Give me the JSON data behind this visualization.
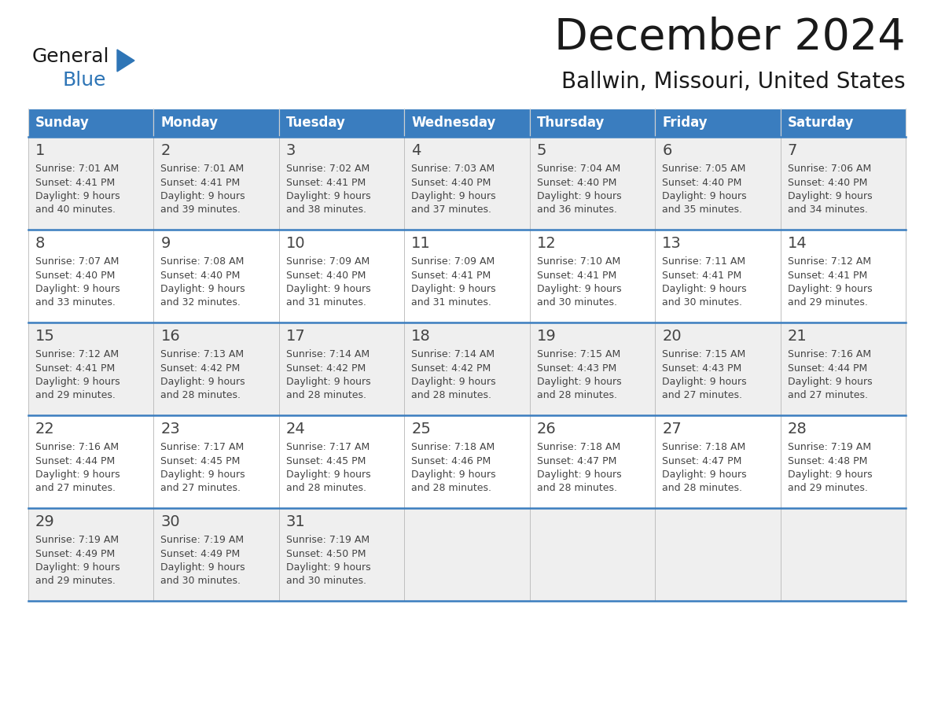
{
  "title": "December 2024",
  "subtitle": "Ballwin, Missouri, United States",
  "header_color": "#3A7DBF",
  "header_text_color": "#FFFFFF",
  "row_bg_even": "#EFEFEF",
  "row_bg_odd": "#FFFFFF",
  "day_headers": [
    "Sunday",
    "Monday",
    "Tuesday",
    "Wednesday",
    "Thursday",
    "Friday",
    "Saturday"
  ],
  "days": [
    {
      "date": 1,
      "col": 0,
      "row": 0,
      "sunrise": "7:01 AM",
      "sunset": "4:41 PM",
      "daylight_line1": "9 hours",
      "daylight_line2": "and 40 minutes."
    },
    {
      "date": 2,
      "col": 1,
      "row": 0,
      "sunrise": "7:01 AM",
      "sunset": "4:41 PM",
      "daylight_line1": "9 hours",
      "daylight_line2": "and 39 minutes."
    },
    {
      "date": 3,
      "col": 2,
      "row": 0,
      "sunrise": "7:02 AM",
      "sunset": "4:41 PM",
      "daylight_line1": "9 hours",
      "daylight_line2": "and 38 minutes."
    },
    {
      "date": 4,
      "col": 3,
      "row": 0,
      "sunrise": "7:03 AM",
      "sunset": "4:40 PM",
      "daylight_line1": "9 hours",
      "daylight_line2": "and 37 minutes."
    },
    {
      "date": 5,
      "col": 4,
      "row": 0,
      "sunrise": "7:04 AM",
      "sunset": "4:40 PM",
      "daylight_line1": "9 hours",
      "daylight_line2": "and 36 minutes."
    },
    {
      "date": 6,
      "col": 5,
      "row": 0,
      "sunrise": "7:05 AM",
      "sunset": "4:40 PM",
      "daylight_line1": "9 hours",
      "daylight_line2": "and 35 minutes."
    },
    {
      "date": 7,
      "col": 6,
      "row": 0,
      "sunrise": "7:06 AM",
      "sunset": "4:40 PM",
      "daylight_line1": "9 hours",
      "daylight_line2": "and 34 minutes."
    },
    {
      "date": 8,
      "col": 0,
      "row": 1,
      "sunrise": "7:07 AM",
      "sunset": "4:40 PM",
      "daylight_line1": "9 hours",
      "daylight_line2": "and 33 minutes."
    },
    {
      "date": 9,
      "col": 1,
      "row": 1,
      "sunrise": "7:08 AM",
      "sunset": "4:40 PM",
      "daylight_line1": "9 hours",
      "daylight_line2": "and 32 minutes."
    },
    {
      "date": 10,
      "col": 2,
      "row": 1,
      "sunrise": "7:09 AM",
      "sunset": "4:40 PM",
      "daylight_line1": "9 hours",
      "daylight_line2": "and 31 minutes."
    },
    {
      "date": 11,
      "col": 3,
      "row": 1,
      "sunrise": "7:09 AM",
      "sunset": "4:41 PM",
      "daylight_line1": "9 hours",
      "daylight_line2": "and 31 minutes."
    },
    {
      "date": 12,
      "col": 4,
      "row": 1,
      "sunrise": "7:10 AM",
      "sunset": "4:41 PM",
      "daylight_line1": "9 hours",
      "daylight_line2": "and 30 minutes."
    },
    {
      "date": 13,
      "col": 5,
      "row": 1,
      "sunrise": "7:11 AM",
      "sunset": "4:41 PM",
      "daylight_line1": "9 hours",
      "daylight_line2": "and 30 minutes."
    },
    {
      "date": 14,
      "col": 6,
      "row": 1,
      "sunrise": "7:12 AM",
      "sunset": "4:41 PM",
      "daylight_line1": "9 hours",
      "daylight_line2": "and 29 minutes."
    },
    {
      "date": 15,
      "col": 0,
      "row": 2,
      "sunrise": "7:12 AM",
      "sunset": "4:41 PM",
      "daylight_line1": "9 hours",
      "daylight_line2": "and 29 minutes."
    },
    {
      "date": 16,
      "col": 1,
      "row": 2,
      "sunrise": "7:13 AM",
      "sunset": "4:42 PM",
      "daylight_line1": "9 hours",
      "daylight_line2": "and 28 minutes."
    },
    {
      "date": 17,
      "col": 2,
      "row": 2,
      "sunrise": "7:14 AM",
      "sunset": "4:42 PM",
      "daylight_line1": "9 hours",
      "daylight_line2": "and 28 minutes."
    },
    {
      "date": 18,
      "col": 3,
      "row": 2,
      "sunrise": "7:14 AM",
      "sunset": "4:42 PM",
      "daylight_line1": "9 hours",
      "daylight_line2": "and 28 minutes."
    },
    {
      "date": 19,
      "col": 4,
      "row": 2,
      "sunrise": "7:15 AM",
      "sunset": "4:43 PM",
      "daylight_line1": "9 hours",
      "daylight_line2": "and 28 minutes."
    },
    {
      "date": 20,
      "col": 5,
      "row": 2,
      "sunrise": "7:15 AM",
      "sunset": "4:43 PM",
      "daylight_line1": "9 hours",
      "daylight_line2": "and 27 minutes."
    },
    {
      "date": 21,
      "col": 6,
      "row": 2,
      "sunrise": "7:16 AM",
      "sunset": "4:44 PM",
      "daylight_line1": "9 hours",
      "daylight_line2": "and 27 minutes."
    },
    {
      "date": 22,
      "col": 0,
      "row": 3,
      "sunrise": "7:16 AM",
      "sunset": "4:44 PM",
      "daylight_line1": "9 hours",
      "daylight_line2": "and 27 minutes."
    },
    {
      "date": 23,
      "col": 1,
      "row": 3,
      "sunrise": "7:17 AM",
      "sunset": "4:45 PM",
      "daylight_line1": "9 hours",
      "daylight_line2": "and 27 minutes."
    },
    {
      "date": 24,
      "col": 2,
      "row": 3,
      "sunrise": "7:17 AM",
      "sunset": "4:45 PM",
      "daylight_line1": "9 hours",
      "daylight_line2": "and 28 minutes."
    },
    {
      "date": 25,
      "col": 3,
      "row": 3,
      "sunrise": "7:18 AM",
      "sunset": "4:46 PM",
      "daylight_line1": "9 hours",
      "daylight_line2": "and 28 minutes."
    },
    {
      "date": 26,
      "col": 4,
      "row": 3,
      "sunrise": "7:18 AM",
      "sunset": "4:47 PM",
      "daylight_line1": "9 hours",
      "daylight_line2": "and 28 minutes."
    },
    {
      "date": 27,
      "col": 5,
      "row": 3,
      "sunrise": "7:18 AM",
      "sunset": "4:47 PM",
      "daylight_line1": "9 hours",
      "daylight_line2": "and 28 minutes."
    },
    {
      "date": 28,
      "col": 6,
      "row": 3,
      "sunrise": "7:19 AM",
      "sunset": "4:48 PM",
      "daylight_line1": "9 hours",
      "daylight_line2": "and 29 minutes."
    },
    {
      "date": 29,
      "col": 0,
      "row": 4,
      "sunrise": "7:19 AM",
      "sunset": "4:49 PM",
      "daylight_line1": "9 hours",
      "daylight_line2": "and 29 minutes."
    },
    {
      "date": 30,
      "col": 1,
      "row": 4,
      "sunrise": "7:19 AM",
      "sunset": "4:49 PM",
      "daylight_line1": "9 hours",
      "daylight_line2": "and 30 minutes."
    },
    {
      "date": 31,
      "col": 2,
      "row": 4,
      "sunrise": "7:19 AM",
      "sunset": "4:50 PM",
      "daylight_line1": "9 hours",
      "daylight_line2": "and 30 minutes."
    }
  ],
  "num_rows": 5,
  "num_cols": 7,
  "fig_width": 11.88,
  "fig_height": 9.18,
  "dpi": 100,
  "title_fontsize": 40,
  "subtitle_fontsize": 20,
  "header_fontsize": 12,
  "date_fontsize": 14,
  "cell_fontsize": 9,
  "logo_fontsize_general": 18,
  "logo_fontsize_blue": 18,
  "logo_color_general": "#1a1a1a",
  "logo_color_blue": "#2E75B6",
  "logo_triangle_color": "#2E75B6",
  "divider_color": "#3A7DBF",
  "cell_text_color": "#444444",
  "date_text_color": "#444444",
  "grid_line_color": "#BBBBBB",
  "title_color": "#1a1a1a",
  "subtitle_color": "#1a1a1a"
}
